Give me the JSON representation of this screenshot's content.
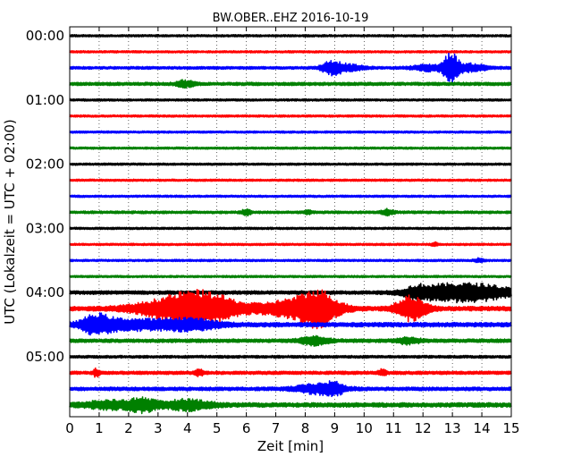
{
  "chart_data": {
    "type": "line",
    "title": "BW.OBER..EHZ 2016-10-19",
    "xlabel": "Zeit  [min]",
    "ylabel": "UTC (Lokalzeit = UTC + 02:00)",
    "xlim": [
      0,
      15
    ],
    "x_ticks": [
      "0",
      "1",
      "2",
      "3",
      "4",
      "5",
      "6",
      "7",
      "8",
      "9",
      "10",
      "11",
      "12",
      "13",
      "14",
      "15"
    ],
    "y_tick_labels": [
      "00:00",
      "01:00",
      "02:00",
      "03:00",
      "04:00",
      "05:00"
    ],
    "grid": "vertical dotted",
    "trace_interval_minutes": 15,
    "color_cycle": [
      "#000000",
      "#ff0000",
      "#0000ff",
      "#008000"
    ],
    "rows": [
      {
        "time": "00:00",
        "color": "#000000",
        "amplitude": 1.2,
        "events": []
      },
      {
        "time": "00:15",
        "color": "#ff0000",
        "amplitude": 1.2,
        "events": []
      },
      {
        "time": "00:30",
        "color": "#0000ff",
        "amplitude": 1.5,
        "events": [
          {
            "t": 8.9,
            "amp": 7,
            "width": 0.35
          },
          {
            "t": 9.5,
            "amp": 3,
            "width": 0.5
          },
          {
            "t": 12.2,
            "amp": 3,
            "width": 0.6
          },
          {
            "t": 12.95,
            "amp": 16,
            "width": 0.25
          },
          {
            "t": 13.6,
            "amp": 4,
            "width": 0.6
          }
        ]
      },
      {
        "time": "00:45",
        "color": "#008000",
        "amplitude": 1.8,
        "events": [
          {
            "t": 3.8,
            "amp": 3,
            "width": 0.2
          },
          {
            "t": 4.1,
            "amp": 2,
            "width": 0.2
          }
        ]
      },
      {
        "time": "01:00",
        "color": "#000000",
        "amplitude": 1.2,
        "events": []
      },
      {
        "time": "01:15",
        "color": "#ff0000",
        "amplitude": 1.2,
        "events": []
      },
      {
        "time": "01:30",
        "color": "#0000ff",
        "amplitude": 1.2,
        "events": []
      },
      {
        "time": "01:45",
        "color": "#008000",
        "amplitude": 1.2,
        "events": []
      },
      {
        "time": "02:00",
        "color": "#000000",
        "amplitude": 1.2,
        "events": []
      },
      {
        "time": "02:15",
        "color": "#ff0000",
        "amplitude": 1.2,
        "events": []
      },
      {
        "time": "02:30",
        "color": "#0000ff",
        "amplitude": 1.2,
        "events": []
      },
      {
        "time": "02:45",
        "color": "#008000",
        "amplitude": 1.5,
        "events": [
          {
            "t": 6.0,
            "amp": 3,
            "width": 0.15
          },
          {
            "t": 8.1,
            "amp": 2,
            "width": 0.1
          },
          {
            "t": 10.8,
            "amp": 3,
            "width": 0.2
          }
        ]
      },
      {
        "time": "03:00",
        "color": "#000000",
        "amplitude": 1.2,
        "events": []
      },
      {
        "time": "03:15",
        "color": "#ff0000",
        "amplitude": 1.2,
        "events": [
          {
            "t": 12.4,
            "amp": 2,
            "width": 0.1
          }
        ]
      },
      {
        "time": "03:30",
        "color": "#0000ff",
        "amplitude": 1.2,
        "events": [
          {
            "t": 13.9,
            "amp": 2,
            "width": 0.15
          }
        ]
      },
      {
        "time": "03:45",
        "color": "#008000",
        "amplitude": 1.2,
        "events": []
      },
      {
        "time": "04:00",
        "color": "#000000",
        "amplitude": 2.0,
        "events": [
          {
            "t": 11.8,
            "amp": 4,
            "width": 0.4
          },
          {
            "t": 12.8,
            "amp": 8,
            "width": 1.2
          },
          {
            "t": 14.2,
            "amp": 6,
            "width": 1.0
          }
        ]
      },
      {
        "time": "04:15",
        "color": "#ff0000",
        "amplitude": 2.5,
        "events": [
          {
            "t": 4.4,
            "amp": 18,
            "width": 1.3
          },
          {
            "t": 7.8,
            "amp": 10,
            "width": 1.2
          },
          {
            "t": 8.5,
            "amp": 13,
            "width": 0.6
          },
          {
            "t": 11.6,
            "amp": 13,
            "width": 0.5
          },
          {
            "t": 3.0,
            "amp": 4,
            "width": 1.2
          }
        ]
      },
      {
        "time": "04:30",
        "color": "#0000ff",
        "amplitude": 2.5,
        "events": [
          {
            "t": 0.9,
            "amp": 9,
            "width": 0.5
          },
          {
            "t": 2.0,
            "amp": 5,
            "width": 1.2
          },
          {
            "t": 4.0,
            "amp": 6,
            "width": 1.0
          }
        ]
      },
      {
        "time": "04:45",
        "color": "#008000",
        "amplitude": 2.0,
        "events": [
          {
            "t": 8.3,
            "amp": 4,
            "width": 0.5
          },
          {
            "t": 11.5,
            "amp": 3,
            "width": 0.4
          }
        ]
      },
      {
        "time": "05:00",
        "color": "#000000",
        "amplitude": 1.5,
        "events": []
      },
      {
        "time": "05:15",
        "color": "#ff0000",
        "amplitude": 1.8,
        "events": [
          {
            "t": 0.9,
            "amp": 4,
            "width": 0.1
          },
          {
            "t": 4.4,
            "amp": 3,
            "width": 0.15
          },
          {
            "t": 10.6,
            "amp": 3,
            "width": 0.15
          }
        ]
      },
      {
        "time": "05:30",
        "color": "#0000ff",
        "amplitude": 2.0,
        "events": [
          {
            "t": 8.5,
            "amp": 5,
            "width": 0.8
          },
          {
            "t": 9.0,
            "amp": 4,
            "width": 0.3
          }
        ]
      },
      {
        "time": "05:45",
        "color": "#008000",
        "amplitude": 2.5,
        "events": [
          {
            "t": 1.5,
            "amp": 4,
            "width": 1.0
          },
          {
            "t": 2.5,
            "amp": 6,
            "width": 0.4
          },
          {
            "t": 4.0,
            "amp": 5,
            "width": 0.8
          }
        ]
      }
    ]
  }
}
